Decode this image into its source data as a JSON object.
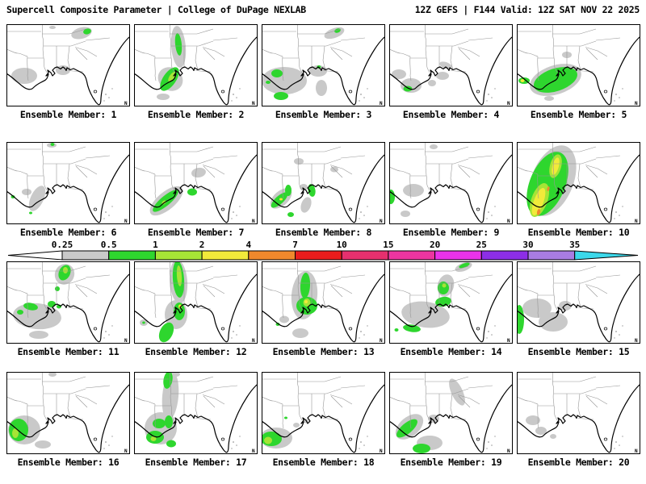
{
  "header": {
    "left": "Supercell Composite Parameter | College of DuPage NEXLAB",
    "right": "12Z GEFS | F144 Valid: 12Z SAT NOV 22 2025"
  },
  "map": {
    "corner_mark": "N",
    "colors": {
      "g": "#c9c9c9",
      "gr": "#2ed62e",
      "lg": "#a6e436",
      "y": "#f2ea3a",
      "o": "#f0882c"
    }
  },
  "chart_data": {
    "type": "heatmap",
    "title": "Supercell Composite Parameter",
    "source": "College of DuPage NEXLAB",
    "model_run": "12Z GEFS",
    "forecast_hour": "F144",
    "valid_time": "12Z SAT NOV 22 2025",
    "region": "Southeastern United States / Gulf of Mexico",
    "colorbar": {
      "levels": [
        "0.25",
        "0.5",
        "1",
        "2",
        "4",
        "7",
        "10",
        "15",
        "20",
        "25",
        "30",
        "35"
      ],
      "colors": [
        "#ffffff",
        "#c9c9c9",
        "#2ed62e",
        "#a6e436",
        "#f2ea3a",
        "#f0882c",
        "#ea1c1c",
        "#e6306e",
        "#ec35a0",
        "#ea32ea",
        "#8c2ee6",
        "#a87ce2",
        "#3cd8ea"
      ]
    },
    "panels": [
      {
        "label": "Ensemble Member: 1",
        "blobs": [
          [
            "g",
            22,
            64,
            16,
            10,
            0
          ],
          [
            "g",
            70,
            57,
            9,
            6,
            0
          ],
          [
            "g",
            57,
            4,
            4,
            2,
            0
          ],
          [
            "g",
            93,
            11,
            13,
            7,
            -15
          ],
          [
            "gr",
            100,
            9,
            5,
            3.5,
            -15
          ]
        ]
      },
      {
        "label": "Ensemble Member: 2",
        "blobs": [
          [
            "g",
            55,
            28,
            9,
            26,
            -5
          ],
          [
            "g",
            45,
            68,
            16,
            14,
            35
          ],
          [
            "gr",
            55,
            25,
            4,
            14,
            -6
          ],
          [
            "gr",
            44,
            68,
            8,
            17,
            35
          ],
          [
            "lg",
            47,
            65,
            3,
            7,
            35
          ],
          [
            "g",
            36,
            90,
            8,
            4,
            0
          ]
        ]
      },
      {
        "label": "Ensemble Member: 3",
        "blobs": [
          [
            "g",
            90,
            11,
            13,
            6,
            -20
          ],
          [
            "gr",
            94,
            8,
            4,
            2.5,
            -20
          ],
          [
            "g",
            28,
            70,
            28,
            17,
            0
          ],
          [
            "gr",
            19,
            61,
            7,
            5,
            0
          ],
          [
            "gr",
            24,
            89,
            9,
            5,
            0
          ],
          [
            "g",
            70,
            58,
            11,
            7,
            0
          ],
          [
            "g",
            74,
            79,
            7,
            10,
            0
          ],
          [
            "gr",
            71,
            53,
            2.5,
            2,
            0
          ],
          [
            "gr",
            8,
            72,
            3,
            2,
            0
          ]
        ]
      },
      {
        "label": "Ensemble Member: 4",
        "blobs": [
          [
            "g",
            12,
            62,
            9,
            6,
            0
          ],
          [
            "g",
            27,
            76,
            13,
            9,
            0
          ],
          [
            "gr",
            23,
            80,
            5.5,
            3.5,
            0
          ],
          [
            "g",
            53,
            73,
            5,
            4,
            0
          ],
          [
            "g",
            66,
            64,
            8,
            5,
            0
          ],
          [
            "g",
            70,
            51,
            8,
            4,
            20
          ]
        ]
      },
      {
        "label": "Ensemble Member: 5",
        "blobs": [
          [
            "g",
            48,
            69,
            33,
            18,
            -18
          ],
          [
            "gr",
            48,
            69,
            28,
            14,
            -18
          ],
          [
            "g",
            62,
            38,
            6,
            4,
            0
          ],
          [
            "gr",
            9,
            70,
            7,
            4,
            0
          ],
          [
            "y",
            7,
            70,
            2.5,
            2,
            0
          ],
          [
            "g",
            40,
            92,
            6,
            3,
            0
          ]
        ]
      },
      {
        "label": "Ensemble Member: 6",
        "blobs": [
          [
            "g",
            38,
            70,
            8,
            17,
            25
          ],
          [
            "g",
            25,
            62,
            6,
            4,
            0
          ],
          [
            "g",
            56,
            4,
            6,
            3,
            0
          ],
          [
            "gr",
            57,
            3,
            2.5,
            2,
            0
          ],
          [
            "gr",
            8,
            68,
            2.5,
            2,
            0
          ],
          [
            "gr",
            30,
            88,
            2,
            1.5,
            0
          ]
        ]
      },
      {
        "label": "Ensemble Member: 7",
        "blobs": [
          [
            "g",
            40,
            73,
            25,
            11,
            -40
          ],
          [
            "gr",
            39,
            73,
            20,
            6,
            -40
          ],
          [
            "lg",
            37,
            75,
            3,
            2,
            -40
          ],
          [
            "gr",
            72,
            62,
            6,
            4.5,
            0
          ],
          [
            "g",
            80,
            38,
            9,
            6,
            -10
          ]
        ]
      },
      {
        "label": "Ensemble Member: 8",
        "blobs": [
          [
            "g",
            24,
            70,
            16,
            9,
            -42
          ],
          [
            "gr",
            22,
            72,
            13,
            5,
            -42
          ],
          [
            "y",
            24,
            71,
            2,
            1.5,
            0
          ],
          [
            "gr",
            33,
            60,
            4,
            7,
            0
          ],
          [
            "gr",
            62,
            60,
            4.5,
            8,
            -10
          ],
          [
            "gr",
            36,
            90,
            4,
            3,
            0
          ],
          [
            "g",
            46,
            24,
            6,
            4,
            0
          ],
          [
            "g",
            52,
            56,
            5,
            4,
            0
          ],
          [
            "g",
            55,
            78,
            6,
            10,
            20
          ],
          [
            "g",
            90,
            34,
            5,
            3.5,
            0
          ]
        ]
      },
      {
        "label": "Ensemble Member: 9",
        "blobs": [
          [
            "gr",
            2,
            68,
            5,
            9,
            0
          ],
          [
            "g",
            30,
            60,
            13,
            8,
            0
          ],
          [
            "g",
            20,
            89,
            6,
            4,
            0
          ],
          [
            "g",
            55,
            6,
            5,
            3,
            0
          ]
        ]
      },
      {
        "label": "Ensemble Member: 10",
        "blobs": [
          [
            "g",
            44,
            48,
            26,
            46,
            22
          ],
          [
            "gr",
            38,
            52,
            22,
            42,
            22
          ],
          [
            "lg",
            28,
            72,
            10,
            22,
            20
          ],
          [
            "y",
            27,
            74,
            6,
            18,
            20
          ],
          [
            "lg",
            48,
            30,
            7,
            15,
            15
          ],
          [
            "y",
            48,
            30,
            4,
            11,
            15
          ],
          [
            "o",
            27,
            87,
            2,
            4,
            10
          ],
          [
            "o",
            39,
            58,
            1.5,
            3,
            15
          ]
        ]
      },
      {
        "label": "Ensemble Member: 11",
        "blobs": [
          [
            "g",
            72,
            16,
            12,
            13,
            25
          ],
          [
            "gr",
            72,
            14,
            7,
            10,
            25
          ],
          [
            "lg",
            73,
            11,
            3,
            4,
            0
          ],
          [
            "g",
            38,
            68,
            30,
            16,
            5
          ],
          [
            "gr",
            30,
            56,
            9,
            4.5,
            10
          ],
          [
            "gr",
            17,
            63,
            4,
            3,
            0
          ],
          [
            "gr",
            56,
            53,
            5,
            4,
            0
          ],
          [
            "gr",
            65,
            56,
            3,
            2.5,
            0
          ],
          [
            "gr",
            63,
            34,
            3,
            3,
            0
          ],
          [
            "g",
            40,
            91,
            12,
            5,
            0
          ]
        ]
      },
      {
        "label": "Ensemble Member: 12",
        "blobs": [
          [
            "g",
            55,
            25,
            11,
            27,
            -4
          ],
          [
            "gr",
            55,
            22,
            7,
            23,
            -4
          ],
          [
            "lg",
            56,
            18,
            3,
            13,
            -4
          ],
          [
            "g",
            52,
            66,
            14,
            18,
            0
          ],
          [
            "gr",
            56,
            62,
            7,
            11,
            0
          ],
          [
            "y",
            57,
            56,
            2,
            2.5,
            0
          ],
          [
            "gr",
            40,
            88,
            8,
            13,
            25
          ],
          [
            "g",
            12,
            76,
            5,
            4,
            0
          ],
          [
            "gr",
            12,
            76,
            1.8,
            1.5,
            0
          ]
        ]
      },
      {
        "label": "Ensemble Member: 13",
        "blobs": [
          [
            "g",
            53,
            42,
            16,
            30,
            5
          ],
          [
            "gr",
            54,
            30,
            6,
            16,
            3
          ],
          [
            "gr",
            56,
            55,
            13,
            11,
            0
          ],
          [
            "lg",
            56,
            51,
            4.5,
            5,
            0
          ],
          [
            "y",
            55,
            50,
            2,
            2,
            0
          ],
          [
            "g",
            28,
            72,
            6,
            4.5,
            0
          ],
          [
            "g",
            48,
            89,
            10,
            6,
            0
          ],
          [
            "gr",
            20,
            78,
            2.5,
            2,
            0
          ]
        ]
      },
      {
        "label": "Ensemble Member: 14",
        "blobs": [
          [
            "g",
            70,
            30,
            10,
            14,
            15
          ],
          [
            "gr",
            67,
            33,
            7,
            8,
            0
          ],
          [
            "lg",
            68,
            30,
            2.5,
            2.5,
            0
          ],
          [
            "g",
            45,
            66,
            30,
            16,
            8
          ],
          [
            "gr",
            67,
            50,
            10,
            6,
            -10
          ],
          [
            "gr",
            28,
            83,
            11,
            4.5,
            8
          ],
          [
            "gr",
            9,
            85,
            2.5,
            2,
            0
          ],
          [
            "g",
            92,
            7,
            11,
            5,
            -20
          ],
          [
            "gr",
            93,
            5,
            7,
            2.5,
            -20
          ]
        ]
      },
      {
        "label": "Ensemble Member: 15",
        "blobs": [
          [
            "gr",
            3,
            72,
            6,
            18,
            0
          ],
          [
            "g",
            25,
            58,
            18,
            12,
            0
          ],
          [
            "g",
            45,
            75,
            18,
            12,
            0
          ],
          [
            "g",
            60,
            55,
            8,
            6,
            0
          ]
        ]
      },
      {
        "label": "Ensemble Member: 16",
        "blobs": [
          [
            "g",
            22,
            72,
            20,
            18,
            0
          ],
          [
            "gr",
            15,
            72,
            12,
            14,
            0
          ],
          [
            "lg",
            11,
            76,
            4,
            6,
            0
          ],
          [
            "g",
            45,
            90,
            10,
            5,
            0
          ],
          [
            "g",
            57,
            3,
            5,
            3,
            0
          ]
        ]
      },
      {
        "label": "Ensemble Member: 17",
        "blobs": [
          [
            "g",
            45,
            30,
            10,
            30,
            5
          ],
          [
            "gr",
            42,
            10,
            5.5,
            11,
            10
          ],
          [
            "g",
            33,
            70,
            20,
            20,
            0
          ],
          [
            "gr",
            31,
            64,
            8,
            6,
            0
          ],
          [
            "gr",
            43,
            62,
            5,
            8,
            0
          ],
          [
            "gr",
            26,
            81,
            11,
            8,
            0
          ],
          [
            "lg",
            24,
            83,
            3.5,
            3,
            0
          ],
          [
            "gr",
            46,
            89,
            6,
            4.5,
            0
          ],
          [
            "g",
            52,
            3,
            5,
            3,
            0
          ]
        ]
      },
      {
        "label": "Ensemble Member: 18",
        "blobs": [
          [
            "g",
            18,
            82,
            20,
            13,
            0
          ],
          [
            "gr",
            12,
            83,
            13,
            9,
            0
          ],
          [
            "lg",
            8,
            85,
            5,
            4.5,
            0
          ],
          [
            "g",
            43,
            66,
            4,
            3,
            0
          ],
          [
            "g",
            55,
            61,
            3,
            2.5,
            0
          ],
          [
            "gr",
            30,
            57,
            2,
            1.5,
            0
          ]
        ]
      },
      {
        "label": "Ensemble Member: 19",
        "blobs": [
          [
            "g",
            50,
            88,
            16,
            9,
            0
          ],
          [
            "g",
            25,
            68,
            20,
            12,
            -40
          ],
          [
            "gr",
            22,
            70,
            16,
            6.5,
            -40
          ],
          [
            "gr",
            40,
            95,
            11,
            6,
            0
          ],
          [
            "g",
            84,
            25,
            7,
            18,
            -25
          ],
          [
            "g",
            55,
            58,
            7,
            5,
            0
          ]
        ]
      },
      {
        "label": "Ensemble Member: 20",
        "blobs": [
          [
            "g",
            20,
            60,
            9,
            6,
            0
          ],
          [
            "g",
            30,
            73,
            7,
            5,
            0
          ],
          [
            "g",
            45,
            80,
            4,
            3,
            0
          ]
        ]
      }
    ]
  }
}
